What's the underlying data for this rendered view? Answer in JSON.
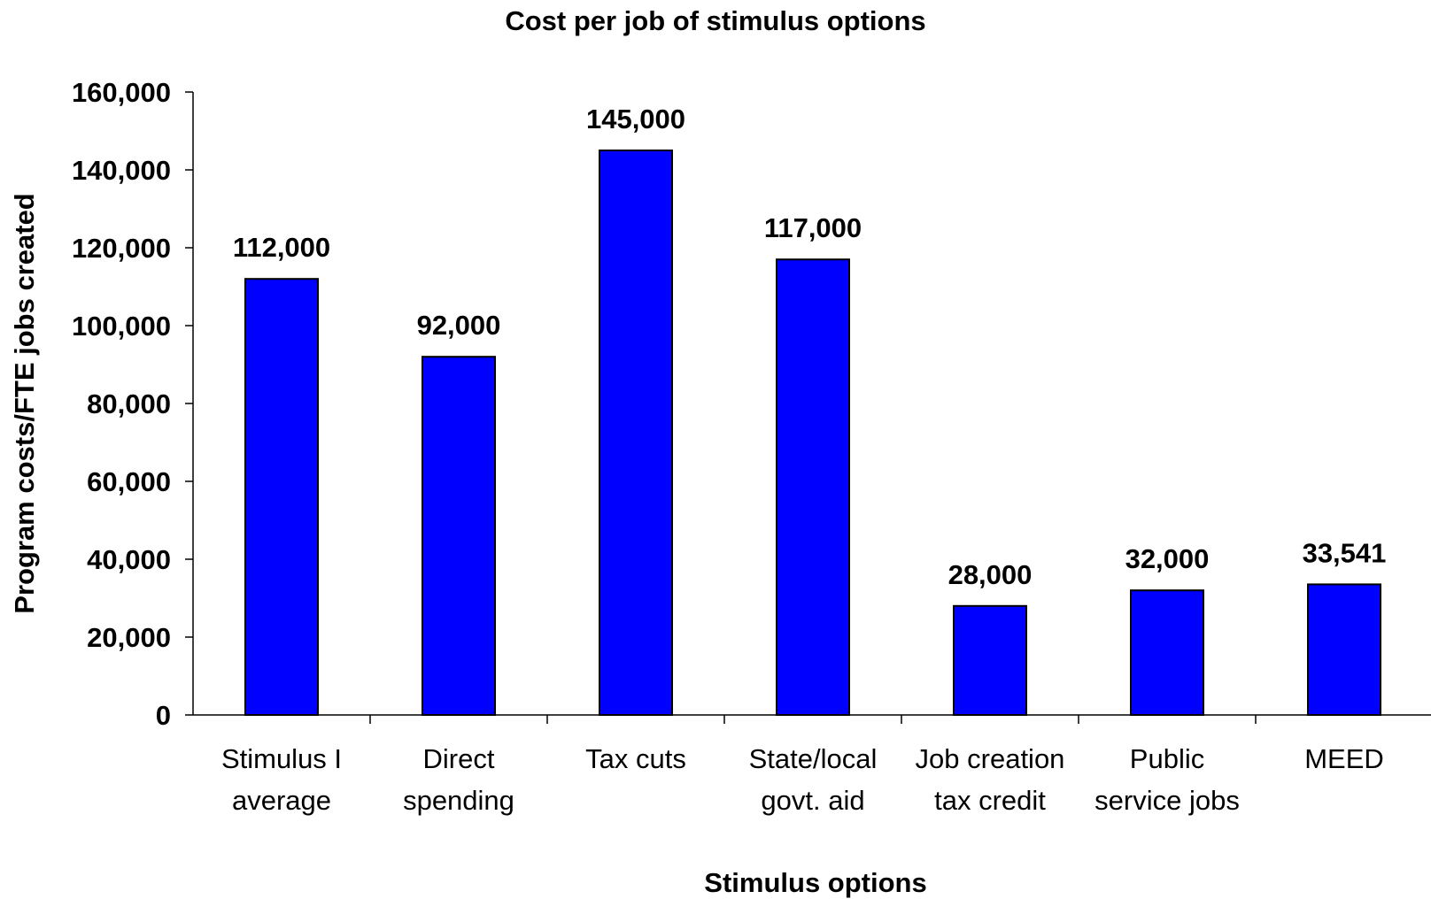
{
  "chart_data": {
    "type": "bar",
    "title": "Cost per job of stimulus options",
    "xlabel": "Stimulus options",
    "ylabel": "Program costs/FTE jobs created",
    "categories": [
      [
        "Stimulus I",
        "average"
      ],
      [
        "Direct",
        "spending"
      ],
      [
        "Tax cuts"
      ],
      [
        "State/local",
        "govt. aid"
      ],
      [
        "Job creation",
        "tax credit"
      ],
      [
        "Public",
        "service jobs"
      ],
      [
        "MEED"
      ]
    ],
    "values": [
      112000,
      92000,
      145000,
      117000,
      28000,
      32000,
      33541
    ],
    "data_labels": [
      "112,000",
      "92,000",
      "145,000",
      "117,000",
      "28,000",
      "32,000",
      "33,541"
    ],
    "yticks": [
      "0",
      "20,000",
      "40,000",
      "60,000",
      "80,000",
      "100,000",
      "120,000",
      "140,000",
      "160,000"
    ],
    "ylim": [
      0,
      160000
    ],
    "grid": false,
    "legend": "none",
    "colors": {
      "bar": "#0000FF",
      "bar_stroke": "#000000",
      "axis": "#000000"
    }
  }
}
